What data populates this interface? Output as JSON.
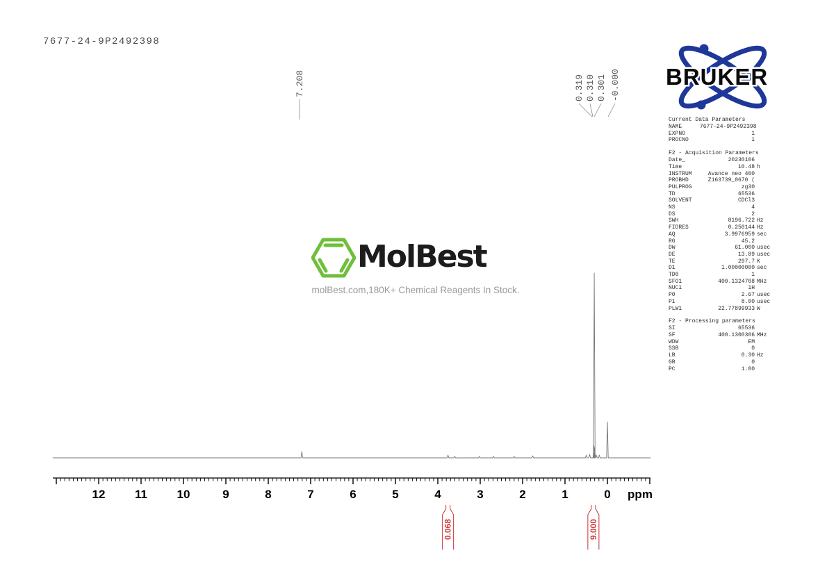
{
  "header": {
    "sample_id": "7677-24-9P2492398"
  },
  "bruker_logo": {
    "text": "BRUKER",
    "blue": "#1e3799"
  },
  "molbest_logo": {
    "name": "MolBest",
    "tagline": "molBest.com,180K+ Chemical Reagents In Stock.",
    "green": "#6fbf3a"
  },
  "parameters": {
    "sections": [
      {
        "title": "Current Data Parameters",
        "rows": [
          {
            "n": "NAME",
            "v": "7677-24-9P2492398",
            "u": ""
          },
          {
            "n": "EXPNO",
            "v": "1",
            "u": ""
          },
          {
            "n": "PROCNO",
            "v": "1",
            "u": ""
          }
        ]
      },
      {
        "title": "F2 - Acquisition Parameters",
        "rows": [
          {
            "n": "Date_",
            "v": "20230106",
            "u": ""
          },
          {
            "n": "Time",
            "v": "10.48",
            "u": "h"
          },
          {
            "n": "INSTRUM",
            "v": "Avance neo 400",
            "u": ""
          },
          {
            "n": "PROBHD",
            "v": "Z163739_0670 (",
            "u": ""
          },
          {
            "n": "PULPROG",
            "v": "zg30",
            "u": ""
          },
          {
            "n": "TD",
            "v": "65536",
            "u": ""
          },
          {
            "n": "SOLVENT",
            "v": "CDCl3",
            "u": ""
          },
          {
            "n": "NS",
            "v": "4",
            "u": ""
          },
          {
            "n": "DS",
            "v": "2",
            "u": ""
          },
          {
            "n": "SWH",
            "v": "8196.722",
            "u": "Hz"
          },
          {
            "n": "FIDRES",
            "v": "0.250144",
            "u": "Hz"
          },
          {
            "n": "AQ",
            "v": "3.9976959",
            "u": "sec"
          },
          {
            "n": "RG",
            "v": "45.2",
            "u": ""
          },
          {
            "n": "DW",
            "v": "61.000",
            "u": "usec"
          },
          {
            "n": "DE",
            "v": "13.89",
            "u": "usec"
          },
          {
            "n": "TE",
            "v": "297.7",
            "u": "K"
          },
          {
            "n": "D1",
            "v": "1.00000000",
            "u": "sec"
          },
          {
            "n": "TD0",
            "v": "1",
            "u": ""
          },
          {
            "n": "SFO1",
            "v": "400.1324708",
            "u": "MHz"
          },
          {
            "n": "NUC1",
            "v": "1H",
            "u": ""
          },
          {
            "n": "P0",
            "v": "2.67",
            "u": "usec"
          },
          {
            "n": "P1",
            "v": "8.00",
            "u": "usec"
          },
          {
            "n": "PLW1",
            "v": "22.77899933",
            "u": "W"
          }
        ]
      },
      {
        "title": "F2 - Processing parameters",
        "rows": [
          {
            "n": "SI",
            "v": "65536",
            "u": ""
          },
          {
            "n": "SF",
            "v": "400.1300306",
            "u": "MHz"
          },
          {
            "n": "WDW",
            "v": "EM",
            "u": ""
          },
          {
            "n": "SSB",
            "v": "0",
            "u": ""
          },
          {
            "n": "LB",
            "v": "0.30",
            "u": "Hz"
          },
          {
            "n": "GB",
            "v": "0",
            "u": ""
          },
          {
            "n": "PC",
            "v": "1.00",
            "u": ""
          }
        ]
      }
    ]
  },
  "chart_data": {
    "type": "line",
    "title": "1H NMR spectrum",
    "xlabel": "ppm",
    "ylabel": "",
    "x_axis": {
      "unit": "ppm",
      "min": -1.0,
      "max": 13.05,
      "labeled_ticks": [
        "12",
        "11",
        "10",
        "9",
        "8",
        "7",
        "6",
        "5",
        "4",
        "3",
        "2",
        "1",
        "0"
      ],
      "minor_tick_interval": 0.1,
      "direction": "reversed",
      "grid": false
    },
    "peaks": [
      {
        "ppm": 7.208,
        "intensity": 0.034
      },
      {
        "ppm": 3.76,
        "intensity": 0.015
      },
      {
        "ppm": 3.6,
        "intensity": 0.008
      },
      {
        "ppm": 3.02,
        "intensity": 0.008
      },
      {
        "ppm": 2.69,
        "intensity": 0.008
      },
      {
        "ppm": 2.2,
        "intensity": 0.008
      },
      {
        "ppm": 1.76,
        "intensity": 0.011
      },
      {
        "ppm": 0.5,
        "intensity": 0.015
      },
      {
        "ppm": 0.42,
        "intensity": 0.019
      },
      {
        "ppm": 0.319,
        "intensity": 0.068
      },
      {
        "ppm": 0.31,
        "intensity": 1.0
      },
      {
        "ppm": 0.301,
        "intensity": 0.056
      },
      {
        "ppm": 0.26,
        "intensity": 0.015
      },
      {
        "ppm": 0.19,
        "intensity": 0.015
      },
      {
        "ppm": 0.0,
        "intensity": 0.195
      }
    ],
    "peak_annotations": [
      {
        "label": "7.208",
        "ppm": 7.208
      },
      {
        "label": "0.319",
        "ppm": 0.319
      },
      {
        "label": "0.310",
        "ppm": 0.31
      },
      {
        "label": "0.301",
        "ppm": 0.301
      },
      {
        "label": "-0.000",
        "ppm": 0.0
      }
    ],
    "integrals": [
      {
        "value": "0.068",
        "ppm_center": 3.76
      },
      {
        "value": "9.000",
        "ppm_center": 0.33
      }
    ],
    "colors": {
      "trace": "#777777",
      "axis": "#000000",
      "integral": "#cc3333",
      "annotation_line": "#888888"
    }
  }
}
